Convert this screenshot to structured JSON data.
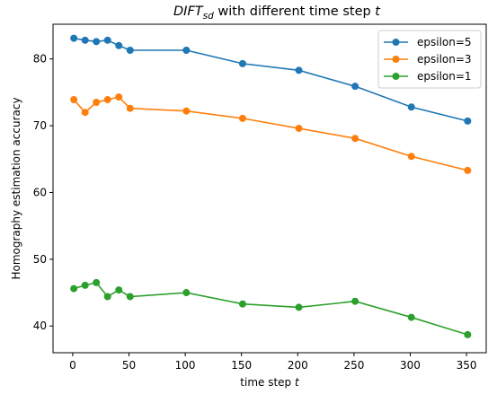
{
  "chart_data": {
    "type": "line",
    "title": {
      "main": "DIFT",
      "sub": "sd",
      "rest": " with different time step ",
      "var": "t"
    },
    "xlabel": {
      "text": "time step ",
      "var": "t"
    },
    "ylabel": "Homography estimation accuracy",
    "xlim": [
      -17.5,
      367.5
    ],
    "ylim": [
      36.0,
      85.2
    ],
    "xticks": [
      0,
      50,
      100,
      150,
      200,
      250,
      300,
      350
    ],
    "yticks": [
      40,
      50,
      60,
      70,
      80
    ],
    "x": [
      1,
      11,
      21,
      31,
      41,
      51,
      101,
      151,
      201,
      251,
      301,
      351
    ],
    "series": [
      {
        "name": "epsilon=5",
        "color": "#1f77b4",
        "values": [
          83.1,
          82.8,
          82.6,
          82.8,
          82.0,
          81.3,
          81.3,
          79.3,
          78.3,
          75.9,
          72.8,
          70.7
        ]
      },
      {
        "name": "epsilon=3",
        "color": "#ff7f0e",
        "values": [
          73.9,
          72.0,
          73.5,
          73.9,
          74.3,
          72.6,
          72.2,
          71.1,
          69.6,
          68.1,
          65.4,
          63.3
        ]
      },
      {
        "name": "epsilon=1",
        "color": "#2ca02c",
        "values": [
          45.6,
          46.1,
          46.5,
          44.4,
          45.4,
          44.4,
          45.0,
          43.3,
          42.8,
          43.7,
          41.3,
          38.7
        ]
      }
    ],
    "grid": false,
    "legend_position": "top-right"
  }
}
